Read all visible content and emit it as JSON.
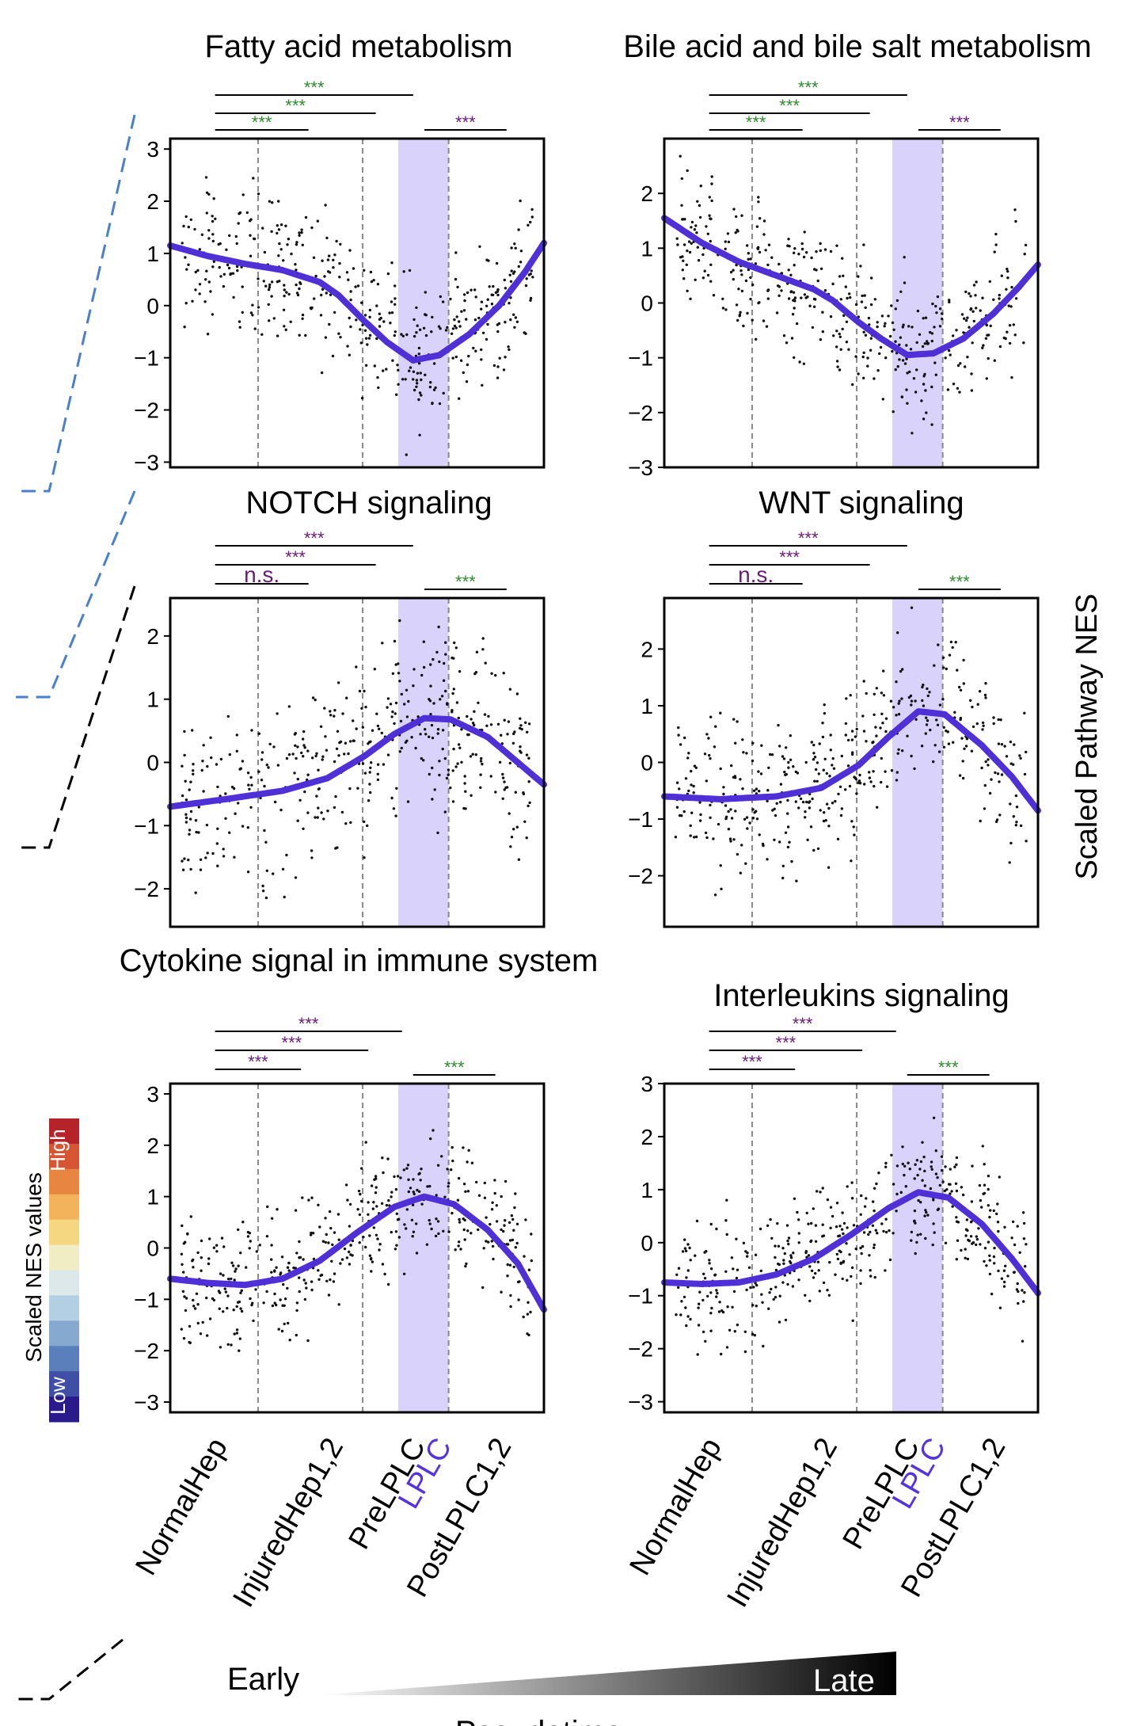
{
  "colors": {
    "curve": "#4f2fd6",
    "lplc_band": "#d9d3fb",
    "sig_green": "#2e8b2e",
    "sig_purple": "#6a1b7a",
    "bracket_blue": "#4a7fd0",
    "lplc_label": "#5533e0",
    "colorbar": [
      "#2b1a8c",
      "#3f4fa6",
      "#5b7fba",
      "#86a9cf",
      "#b3cfe3",
      "#dde8ea",
      "#f0ecc4",
      "#f4d780",
      "#f2b35a",
      "#e88641",
      "#d65633",
      "#b6242a"
    ]
  },
  "labels": {
    "y_axis": "Scaled Pathway NES",
    "colorbar_title": "Scaled NES values",
    "colorbar_high": "High",
    "colorbar_low": "Low",
    "early": "Early",
    "late": "Late",
    "x_axis_partial": "Pseudotime"
  },
  "stages": [
    "NormalHep",
    "InjuredHep1,2",
    "PreLPLC",
    "LPLC",
    "PostLPLC1,2"
  ],
  "chart_data": [
    {
      "type": "scatter",
      "title": "Fatty acid metabolism",
      "ylabel": "Scaled Pathway NES",
      "yticks": [
        -3,
        -2,
        -1,
        0,
        1,
        2,
        3
      ],
      "ylim": [
        -3.1,
        3.2
      ],
      "trend": [
        [
          0,
          1.15
        ],
        [
          0.1,
          0.95
        ],
        [
          0.2,
          0.8
        ],
        [
          0.3,
          0.68
        ],
        [
          0.4,
          0.45
        ],
        [
          0.45,
          0.2
        ],
        [
          0.52,
          -0.3
        ],
        [
          0.58,
          -0.7
        ],
        [
          0.65,
          -1.05
        ],
        [
          0.72,
          -0.95
        ],
        [
          0.8,
          -0.55
        ],
        [
          0.88,
          0.0
        ],
        [
          0.95,
          0.65
        ],
        [
          1.0,
          1.2
        ]
      ],
      "significance": [
        {
          "text": "***",
          "color": "green",
          "from": 0.12,
          "to": 0.65
        },
        {
          "text": "***",
          "color": "green",
          "from": 0.12,
          "to": 0.55
        },
        {
          "text": "***",
          "color": "green",
          "from": 0.12,
          "to": 0.37
        },
        {
          "text": "***",
          "color": "purple",
          "from": 0.68,
          "to": 0.9
        }
      ]
    },
    {
      "type": "scatter",
      "title": "Bile acid and bile salt metabolism",
      "ylabel": "Scaled Pathway NES",
      "yticks": [
        -3,
        -2,
        -1,
        0,
        1,
        2
      ],
      "ylim": [
        -3.0,
        3.0
      ],
      "trend": [
        [
          0,
          1.55
        ],
        [
          0.1,
          1.1
        ],
        [
          0.2,
          0.75
        ],
        [
          0.3,
          0.5
        ],
        [
          0.4,
          0.25
        ],
        [
          0.45,
          0.05
        ],
        [
          0.52,
          -0.35
        ],
        [
          0.58,
          -0.65
        ],
        [
          0.65,
          -0.95
        ],
        [
          0.72,
          -0.92
        ],
        [
          0.8,
          -0.65
        ],
        [
          0.88,
          -0.2
        ],
        [
          0.95,
          0.3
        ],
        [
          1.0,
          0.7
        ]
      ],
      "significance": [
        {
          "text": "***",
          "color": "green",
          "from": 0.12,
          "to": 0.65
        },
        {
          "text": "***",
          "color": "green",
          "from": 0.12,
          "to": 0.55
        },
        {
          "text": "***",
          "color": "green",
          "from": 0.12,
          "to": 0.37
        },
        {
          "text": "***",
          "color": "purple",
          "from": 0.68,
          "to": 0.9
        }
      ]
    },
    {
      "type": "scatter",
      "title": "NOTCH signaling",
      "ylabel": "Scaled Pathway NES",
      "yticks": [
        -2,
        -1,
        0,
        1,
        2
      ],
      "ylim": [
        -2.6,
        2.6
      ],
      "trend": [
        [
          0,
          -0.7
        ],
        [
          0.15,
          -0.58
        ],
        [
          0.3,
          -0.45
        ],
        [
          0.42,
          -0.25
        ],
        [
          0.52,
          0.1
        ],
        [
          0.6,
          0.45
        ],
        [
          0.68,
          0.7
        ],
        [
          0.75,
          0.68
        ],
        [
          0.85,
          0.4
        ],
        [
          0.93,
          0.0
        ],
        [
          1.0,
          -0.35
        ]
      ],
      "significance": [
        {
          "text": "***",
          "color": "purple",
          "from": 0.12,
          "to": 0.65
        },
        {
          "text": "***",
          "color": "purple",
          "from": 0.12,
          "to": 0.55
        },
        {
          "text": "n.s.",
          "color": "purple",
          "from": 0.12,
          "to": 0.37
        },
        {
          "text": "***",
          "color": "green",
          "from": 0.68,
          "to": 0.9
        }
      ]
    },
    {
      "type": "scatter",
      "title": "WNT signaling",
      "ylabel": "Scaled Pathway NES",
      "yticks": [
        -2,
        -1,
        0,
        1,
        2
      ],
      "ylim": [
        -2.9,
        2.9
      ],
      "trend": [
        [
          0,
          -0.6
        ],
        [
          0.15,
          -0.65
        ],
        [
          0.3,
          -0.6
        ],
        [
          0.42,
          -0.45
        ],
        [
          0.52,
          -0.05
        ],
        [
          0.6,
          0.45
        ],
        [
          0.68,
          0.9
        ],
        [
          0.75,
          0.85
        ],
        [
          0.85,
          0.3
        ],
        [
          0.93,
          -0.25
        ],
        [
          1.0,
          -0.85
        ]
      ],
      "significance": [
        {
          "text": "***",
          "color": "purple",
          "from": 0.12,
          "to": 0.65
        },
        {
          "text": "***",
          "color": "purple",
          "from": 0.12,
          "to": 0.55
        },
        {
          "text": "n.s.",
          "color": "purple",
          "from": 0.12,
          "to": 0.37
        },
        {
          "text": "***",
          "color": "green",
          "from": 0.68,
          "to": 0.9
        }
      ]
    },
    {
      "type": "scatter",
      "title": "Cytokine signal in immune system",
      "ylabel": "Scaled Pathway NES",
      "yticks": [
        -3,
        -2,
        -1,
        0,
        1,
        2,
        3
      ],
      "ylim": [
        -3.2,
        3.2
      ],
      "trend": [
        [
          0,
          -0.6
        ],
        [
          0.1,
          -0.68
        ],
        [
          0.2,
          -0.72
        ],
        [
          0.3,
          -0.6
        ],
        [
          0.4,
          -0.25
        ],
        [
          0.5,
          0.3
        ],
        [
          0.6,
          0.8
        ],
        [
          0.68,
          1.0
        ],
        [
          0.76,
          0.85
        ],
        [
          0.85,
          0.35
        ],
        [
          0.93,
          -0.3
        ],
        [
          1.0,
          -1.2
        ]
      ],
      "significance": [
        {
          "text": "***",
          "color": "purple",
          "from": 0.12,
          "to": 0.62
        },
        {
          "text": "***",
          "color": "purple",
          "from": 0.12,
          "to": 0.53
        },
        {
          "text": "***",
          "color": "purple",
          "from": 0.12,
          "to": 0.35
        },
        {
          "text": "***",
          "color": "green",
          "from": 0.65,
          "to": 0.87
        }
      ]
    },
    {
      "type": "scatter",
      "title": "Interleukins signaling",
      "ylabel": "Scaled Pathway NES",
      "yticks": [
        -3,
        -2,
        -1,
        0,
        1,
        2,
        3
      ],
      "ylim": [
        -3.2,
        3.0
      ],
      "trend": [
        [
          0,
          -0.75
        ],
        [
          0.1,
          -0.78
        ],
        [
          0.2,
          -0.75
        ],
        [
          0.3,
          -0.6
        ],
        [
          0.4,
          -0.3
        ],
        [
          0.5,
          0.15
        ],
        [
          0.6,
          0.65
        ],
        [
          0.68,
          0.95
        ],
        [
          0.76,
          0.85
        ],
        [
          0.85,
          0.35
        ],
        [
          0.93,
          -0.3
        ],
        [
          1.0,
          -0.95
        ]
      ],
      "significance": [
        {
          "text": "***",
          "color": "purple",
          "from": 0.12,
          "to": 0.62
        },
        {
          "text": "***",
          "color": "purple",
          "from": 0.12,
          "to": 0.53
        },
        {
          "text": "***",
          "color": "purple",
          "from": 0.12,
          "to": 0.35
        },
        {
          "text": "***",
          "color": "green",
          "from": 0.65,
          "to": 0.87
        }
      ]
    }
  ]
}
